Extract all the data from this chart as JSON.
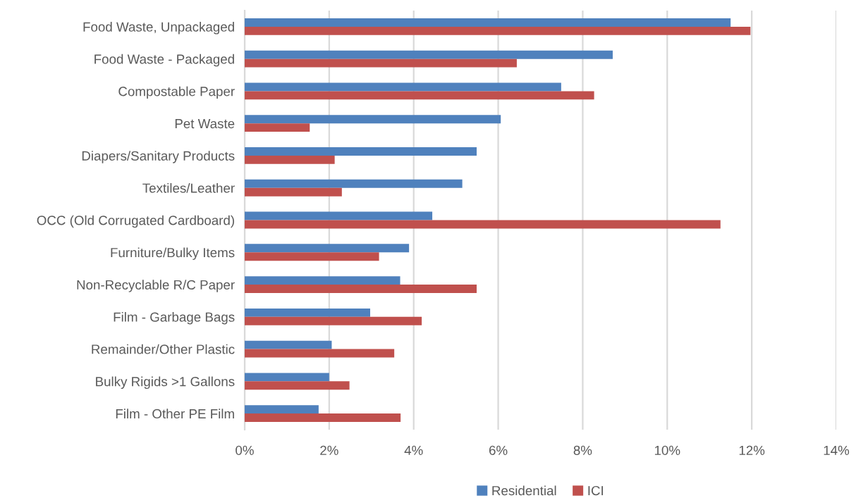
{
  "chart_data": {
    "type": "bar",
    "orientation": "horizontal",
    "categories": [
      "Food Waste, Unpackaged",
      "Food Waste - Packaged",
      "Compostable Paper",
      "Pet Waste",
      "Diapers/Sanitary Products",
      "Textiles/Leather",
      "OCC (Old Corrugated Cardboard)",
      "Furniture/Bulky Items",
      "Non-Recyclable R/C Paper",
      "Film - Garbage Bags",
      "Remainder/Other Plastic",
      "Bulky Rigids >1 Gallons",
      "Film - Other PE Film"
    ],
    "series": [
      {
        "name": "Residential",
        "color": "#4f81bd",
        "values": [
          11.5,
          8.71,
          7.49,
          6.06,
          5.49,
          5.15,
          4.44,
          3.89,
          3.68,
          2.97,
          2.06,
          2.0,
          1.75
        ]
      },
      {
        "name": "ICI",
        "color": "#c0504d",
        "values": [
          11.97,
          6.44,
          8.27,
          1.54,
          2.13,
          2.3,
          11.26,
          3.18,
          5.49,
          4.19,
          3.54,
          2.48,
          3.69
        ]
      }
    ],
    "xlim": [
      0,
      14
    ],
    "xticks": [
      {
        "value": 0,
        "label": "0%"
      },
      {
        "value": 2,
        "label": "2%"
      },
      {
        "value": 4,
        "label": "4%"
      },
      {
        "value": 6,
        "label": "6%"
      },
      {
        "value": 8,
        "label": "8%"
      },
      {
        "value": 10,
        "label": "10%"
      },
      {
        "value": 12,
        "label": "12%"
      },
      {
        "value": 14,
        "label": "14%"
      }
    ],
    "grid": "x",
    "legend": "bottom"
  }
}
